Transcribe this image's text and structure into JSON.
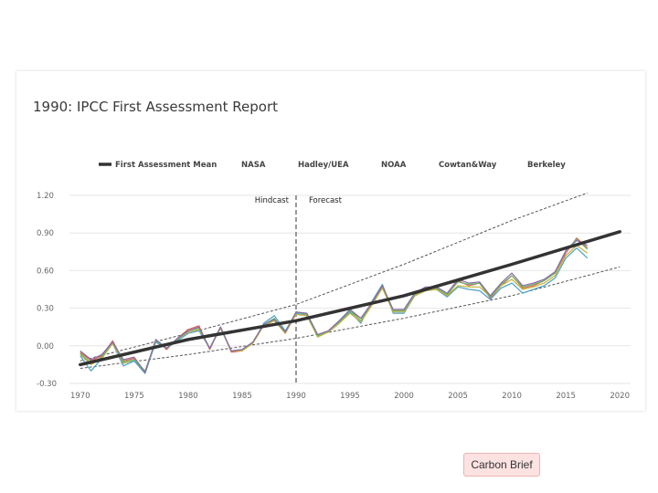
{
  "chart_data": {
    "type": "line",
    "title": "1990: IPCC First Assessment Report",
    "xlabel": "",
    "ylabel": "",
    "xlim": [
      1969,
      2021
    ],
    "ylim": [
      -0.3,
      1.2
    ],
    "x_ticks": [
      "1970",
      "1975",
      "1980",
      "1985",
      "1990",
      "1995",
      "2000",
      "2005",
      "2010",
      "2015",
      "2020"
    ],
    "y_ticks": [
      "1.20",
      "0.90",
      "0.60",
      "0.30",
      "0.00",
      "-0.30"
    ],
    "grid": true,
    "legend_position": "top",
    "legend": [
      "First Assessment Mean",
      "NASA",
      "Hadley/UEA",
      "NOAA",
      "Cowtan&Way",
      "Berkeley"
    ],
    "annotations": {
      "hindcast": "Hindcast",
      "forecast": "Forecast",
      "divider_year": 1990
    },
    "projection": {
      "name": "First Assessment Mean",
      "color": "#333333",
      "x": [
        1970,
        1980,
        1990,
        2000,
        2010,
        2020
      ],
      "values": [
        -0.15,
        0.05,
        0.2,
        0.4,
        0.65,
        0.91
      ]
    },
    "envelope": {
      "upper": {
        "x": [
          1970,
          1980,
          1990,
          2000,
          2010,
          2017
        ],
        "values": [
          -0.12,
          0.1,
          0.33,
          0.65,
          1.0,
          1.22
        ]
      },
      "lower": {
        "x": [
          1970,
          1980,
          1990,
          2000,
          2010,
          2020
        ],
        "values": [
          -0.18,
          -0.07,
          0.06,
          0.22,
          0.4,
          0.63
        ]
      }
    },
    "years": [
      1970,
      1971,
      1972,
      1973,
      1974,
      1975,
      1976,
      1977,
      1978,
      1979,
      1980,
      1981,
      1982,
      1983,
      1984,
      1985,
      1986,
      1987,
      1988,
      1989,
      1990,
      1991,
      1992,
      1993,
      1994,
      1995,
      1996,
      1997,
      1998,
      1999,
      2000,
      2001,
      2002,
      2003,
      2004,
      2005,
      2006,
      2007,
      2008,
      2009,
      2010,
      2011,
      2012,
      2013,
      2014,
      2015,
      2016,
      2017
    ],
    "series": [
      {
        "name": "NASA",
        "color": "#e06050",
        "values": [
          -0.05,
          -0.12,
          -0.08,
          0.04,
          -0.12,
          -0.1,
          -0.22,
          0.05,
          -0.03,
          0.06,
          0.13,
          0.16,
          -0.03,
          0.15,
          -0.05,
          -0.04,
          0.03,
          0.17,
          0.21,
          0.1,
          0.27,
          0.25,
          0.08,
          0.12,
          0.2,
          0.28,
          0.22,
          0.33,
          0.47,
          0.28,
          0.28,
          0.4,
          0.46,
          0.46,
          0.4,
          0.52,
          0.48,
          0.5,
          0.38,
          0.48,
          0.56,
          0.46,
          0.48,
          0.52,
          0.58,
          0.74,
          0.86,
          0.78
        ]
      },
      {
        "name": "Hadley/UEA",
        "color": "#4aa0c8",
        "values": [
          -0.08,
          -0.2,
          -0.1,
          0.02,
          -0.16,
          -0.12,
          -0.22,
          0.03,
          -0.02,
          0.04,
          0.1,
          0.12,
          -0.02,
          0.14,
          -0.04,
          -0.03,
          0.02,
          0.18,
          0.24,
          0.12,
          0.26,
          0.24,
          0.08,
          0.11,
          0.18,
          0.27,
          0.18,
          0.35,
          0.49,
          0.26,
          0.26,
          0.4,
          0.44,
          0.45,
          0.39,
          0.47,
          0.45,
          0.44,
          0.37,
          0.46,
          0.5,
          0.42,
          0.45,
          0.48,
          0.54,
          0.7,
          0.78,
          0.7
        ]
      },
      {
        "name": "NOAA",
        "color": "#c2b33a",
        "values": [
          -0.07,
          -0.15,
          -0.1,
          0.02,
          -0.14,
          -0.11,
          -0.2,
          0.04,
          -0.02,
          0.05,
          0.11,
          0.13,
          -0.02,
          0.14,
          -0.04,
          -0.04,
          0.02,
          0.16,
          0.2,
          0.1,
          0.25,
          0.24,
          0.07,
          0.11,
          0.18,
          0.26,
          0.19,
          0.32,
          0.46,
          0.27,
          0.27,
          0.4,
          0.44,
          0.45,
          0.4,
          0.48,
          0.47,
          0.47,
          0.39,
          0.48,
          0.53,
          0.45,
          0.47,
          0.5,
          0.56,
          0.72,
          0.8,
          0.74
        ]
      },
      {
        "name": "Cowtan&Way",
        "color": "#6bb56b",
        "values": [
          -0.06,
          -0.14,
          -0.09,
          0.03,
          -0.13,
          -0.11,
          -0.21,
          0.04,
          -0.02,
          0.05,
          0.12,
          0.14,
          -0.02,
          0.15,
          -0.04,
          -0.03,
          0.03,
          0.17,
          0.22,
          0.11,
          0.27,
          0.25,
          0.08,
          0.12,
          0.19,
          0.28,
          0.2,
          0.34,
          0.48,
          0.28,
          0.28,
          0.41,
          0.46,
          0.46,
          0.41,
          0.51,
          0.49,
          0.5,
          0.39,
          0.49,
          0.56,
          0.47,
          0.49,
          0.52,
          0.58,
          0.76,
          0.85,
          0.77
        ]
      },
      {
        "name": "Berkeley",
        "color": "#8a6aa8",
        "values": [
          -0.04,
          -0.11,
          -0.07,
          0.03,
          -0.11,
          -0.09,
          -0.21,
          0.05,
          -0.02,
          0.06,
          0.12,
          0.15,
          -0.02,
          0.15,
          -0.04,
          -0.03,
          0.03,
          0.17,
          0.21,
          0.11,
          0.27,
          0.26,
          0.09,
          0.12,
          0.2,
          0.29,
          0.22,
          0.34,
          0.48,
          0.29,
          0.29,
          0.42,
          0.47,
          0.47,
          0.42,
          0.53,
          0.5,
          0.51,
          0.4,
          0.5,
          0.58,
          0.48,
          0.5,
          0.53,
          0.59,
          0.76,
          0.84,
          0.8
        ]
      }
    ]
  },
  "source_label": "Carbon Brief"
}
